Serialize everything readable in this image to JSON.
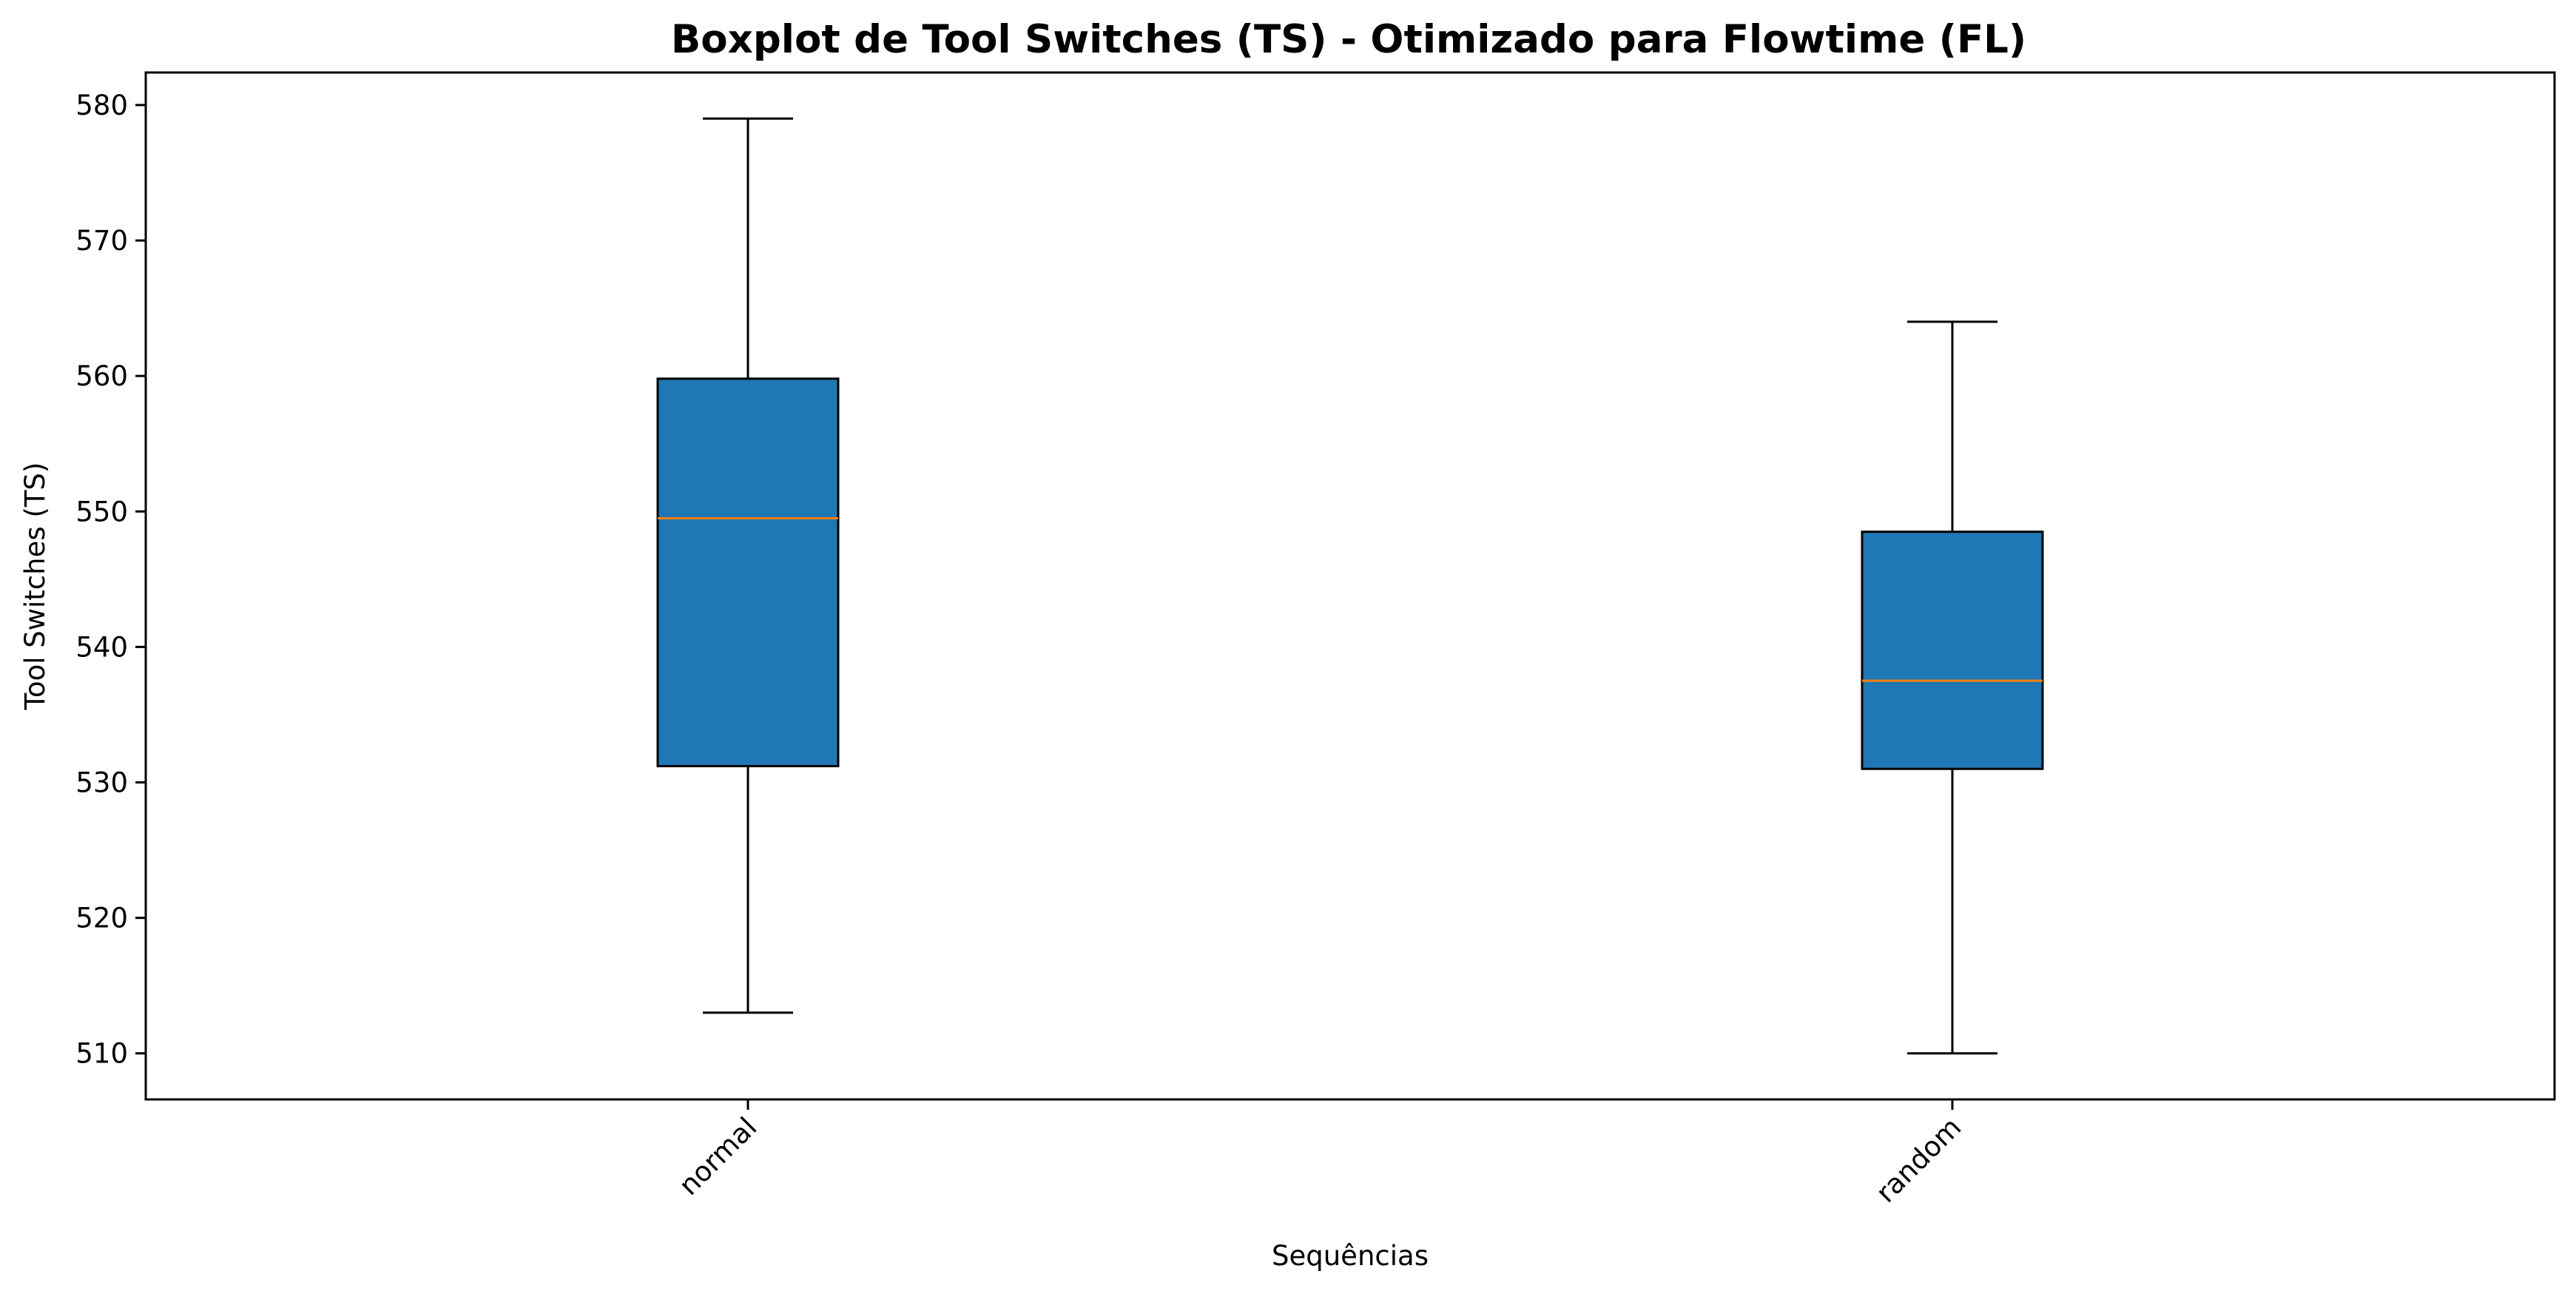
{
  "chart_data": {
    "type": "boxplot",
    "title": "Boxplot de Tool Switches (TS) - Otimizado para Flowtime (FL)",
    "xlabel": "Sequências",
    "ylabel": "Tool Switches (TS)",
    "categories": [
      "normal",
      "random"
    ],
    "boxes": [
      {
        "category": "normal",
        "whisker_low": 513,
        "q1": 531.2,
        "median": 549.5,
        "q3": 559.8,
        "whisker_high": 579
      },
      {
        "category": "random",
        "whisker_low": 510,
        "q1": 531.0,
        "median": 537.5,
        "q3": 548.5,
        "whisker_high": 564
      }
    ],
    "yticks": [
      510,
      520,
      530,
      540,
      550,
      560,
      570,
      580
    ],
    "ylim": [
      506.6,
      582.4
    ],
    "grid": false,
    "legend": "none",
    "colors": {
      "box_fill": "#1f77b4",
      "box_edge": "#000000",
      "median": "#ff7f0e",
      "whisker": "#000000"
    }
  }
}
